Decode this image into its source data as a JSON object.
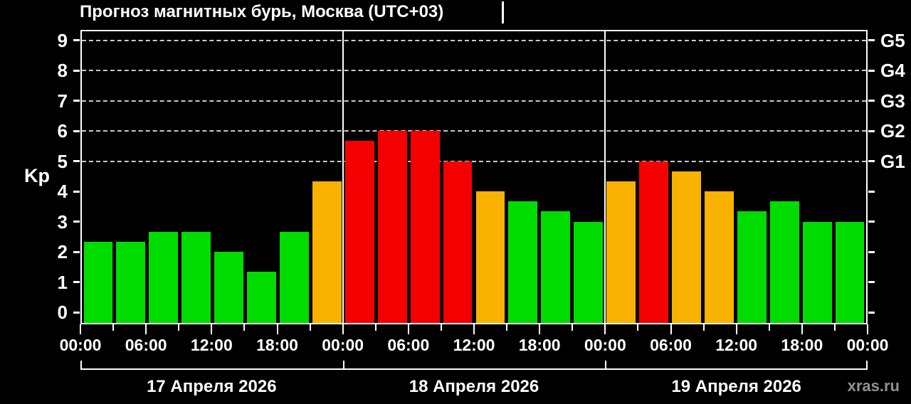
{
  "watermark": "xras.ru",
  "colors": {
    "background": "#000000",
    "axis": "#ffffff",
    "gridline": "#c9c9c9",
    "green": "#00dc00",
    "orange": "#f9b200",
    "red": "#f40000",
    "watermark": "#919191"
  },
  "chart_data": {
    "type": "bar",
    "title": "Прогноз магнитных бурь, Москва (UTC+03)",
    "ylabel": "Kp",
    "ylim": [
      0,
      9
    ],
    "y_ticks": [
      0,
      1,
      2,
      3,
      4,
      5,
      6,
      7,
      8,
      9
    ],
    "right_axis": {
      "labels": [
        "G1",
        "G2",
        "G3",
        "G4",
        "G5"
      ],
      "at_kp": [
        5,
        6,
        7,
        8,
        9
      ]
    },
    "grid": {
      "horizontal_dashed_at_kp": [
        5,
        6,
        7,
        8,
        9
      ]
    },
    "bar_interval_hours": 3,
    "x_time_ticks": [
      "00:00",
      "06:00",
      "12:00",
      "18:00",
      "00:00",
      "06:00",
      "12:00",
      "18:00",
      "00:00",
      "06:00",
      "12:00",
      "18:00",
      "00:00"
    ],
    "days": [
      {
        "date": "17 Апреля 2026",
        "values": [
          2.33,
          2.33,
          2.67,
          2.67,
          2.0,
          1.33,
          2.67,
          4.33
        ]
      },
      {
        "date": "18 Апреля 2026",
        "values": [
          5.67,
          6.0,
          6.0,
          5.0,
          4.0,
          3.67,
          3.33,
          3.0
        ]
      },
      {
        "date": "19 Апреля 2026",
        "values": [
          4.33,
          5.0,
          4.67,
          4.0,
          3.33,
          3.67,
          3.0,
          3.0
        ]
      }
    ],
    "color_rules": {
      "red_kp_min": 5,
      "orange_kp_min": 4,
      "green_otherwise": true
    }
  }
}
